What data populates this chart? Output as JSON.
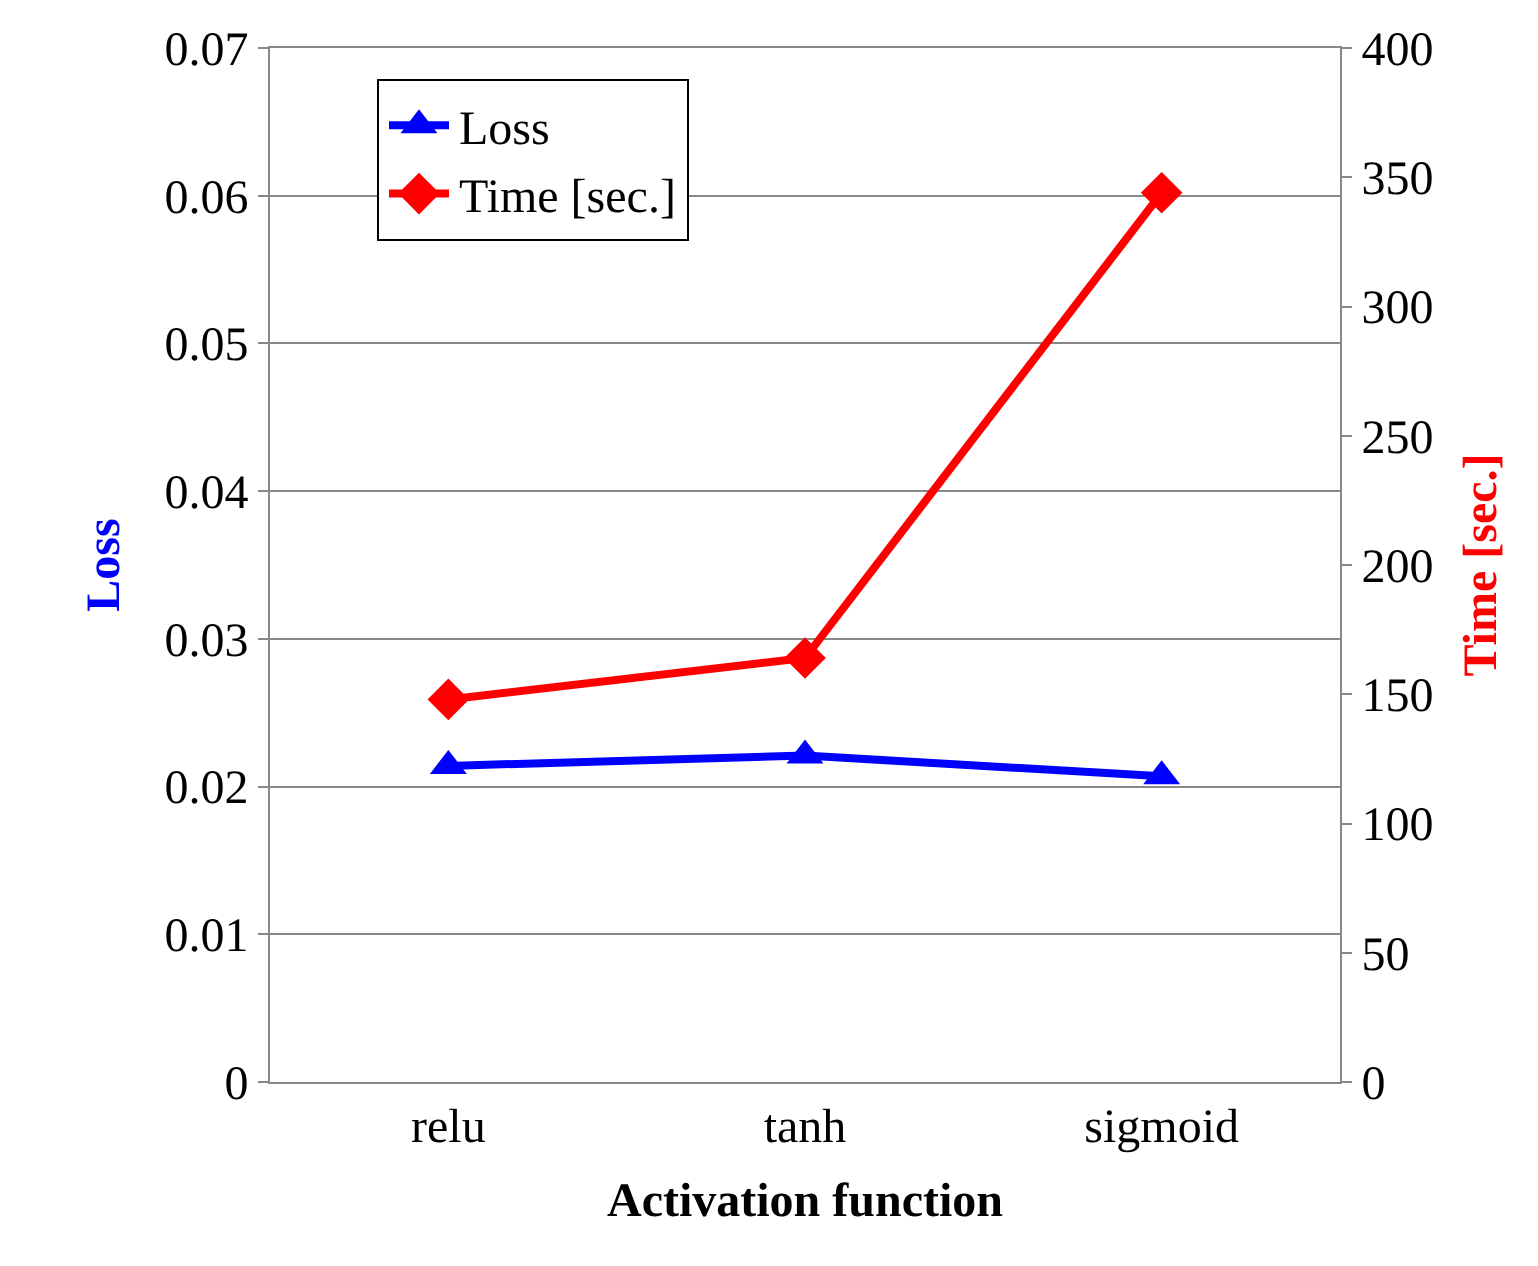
{
  "chart_data": {
    "type": "line",
    "xlabel": "Activation function",
    "ylabel": "Loss",
    "y2label": "Time [sec.]",
    "categories": [
      "relu",
      "tanh",
      "sigmoid"
    ],
    "series": [
      {
        "name": "Loss",
        "color": "#0000ff",
        "marker": "triangle",
        "values": [
          0.0214,
          0.0221,
          0.0207
        ]
      },
      {
        "name": "Time [sec.]",
        "color": "#ff0000",
        "marker": "diamond",
        "axis": "y2",
        "values": [
          148,
          164,
          344
        ]
      }
    ],
    "ylim": [
      0,
      0.07
    ],
    "yticks": [
      0,
      0.01,
      0.02,
      0.03,
      0.04,
      0.05,
      0.06,
      0.07
    ],
    "y2lim": [
      0,
      400
    ],
    "y2ticks": [
      0,
      50,
      100,
      150,
      200,
      250,
      300,
      350,
      400
    ],
    "grid": "y",
    "legend": "top left",
    "line_style": "solid"
  }
}
